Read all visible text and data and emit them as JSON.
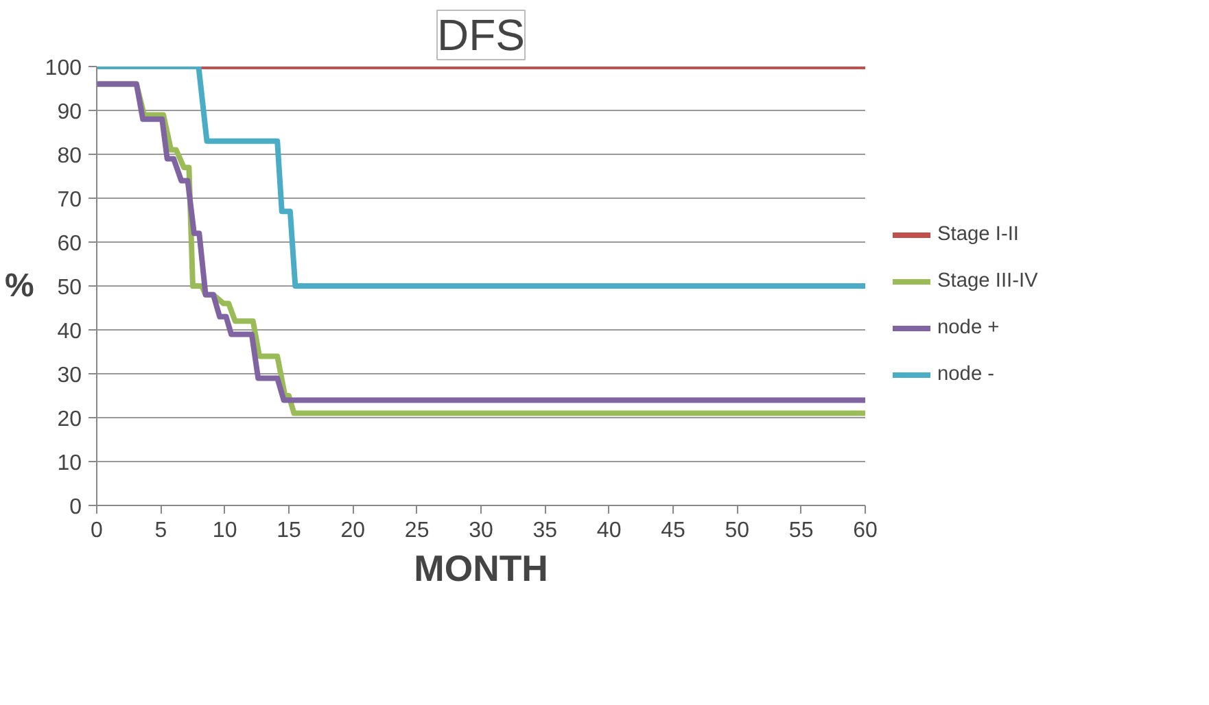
{
  "chart_data": {
    "type": "line",
    "title": "DFS",
    "xlabel": "MONTH",
    "ylabel": "%",
    "xlim": [
      0,
      60
    ],
    "xticks": [
      0,
      5,
      10,
      15,
      20,
      25,
      30,
      35,
      40,
      45,
      50,
      55,
      60
    ],
    "ylim": [
      0,
      100
    ],
    "yticks": [
      0,
      10,
      20,
      30,
      40,
      50,
      60,
      70,
      80,
      90,
      100
    ],
    "grid": "y",
    "legend": "right",
    "marker": "none",
    "line_style": "solid",
    "series": [
      {
        "name": "Stage I-II",
        "color": "#c0504d",
        "x": [
          0,
          60
        ],
        "values": [
          100,
          100
        ]
      },
      {
        "name": "Stage III-IV",
        "color": "#9bbb59",
        "x": [
          0,
          3.1,
          3.7,
          5.2,
          5.8,
          6.2,
          6.8,
          7.2,
          7.5,
          8.2,
          8.5,
          9.1,
          9.9,
          10.3,
          10.8,
          12.2,
          12.7,
          14.1,
          14.7,
          15.0,
          15.4,
          60
        ],
        "values": [
          96,
          96,
          89,
          89,
          81,
          81,
          77,
          77,
          50,
          50,
          48,
          48,
          46,
          46,
          42,
          42,
          34,
          34,
          25,
          25,
          21,
          21
        ]
      },
      {
        "name": "node +",
        "color": "#8064a2",
        "x": [
          0,
          3.1,
          3.6,
          5.1,
          5.5,
          6.0,
          6.6,
          7.1,
          7.6,
          8.0,
          8.5,
          9.1,
          9.6,
          10.1,
          10.5,
          12.1,
          12.6,
          14.1,
          14.6,
          60
        ],
        "values": [
          96,
          96,
          88,
          88,
          79,
          79,
          74,
          74,
          62,
          62,
          48,
          48,
          43,
          43,
          39,
          39,
          29,
          29,
          24,
          24
        ]
      },
      {
        "name": "node -",
        "color": "#4bacc6",
        "x": [
          0,
          7.95,
          8.6,
          14.1,
          14.45,
          15.1,
          15.5,
          60
        ],
        "values": [
          100,
          100,
          83,
          83,
          67,
          67,
          50,
          50
        ]
      }
    ]
  }
}
